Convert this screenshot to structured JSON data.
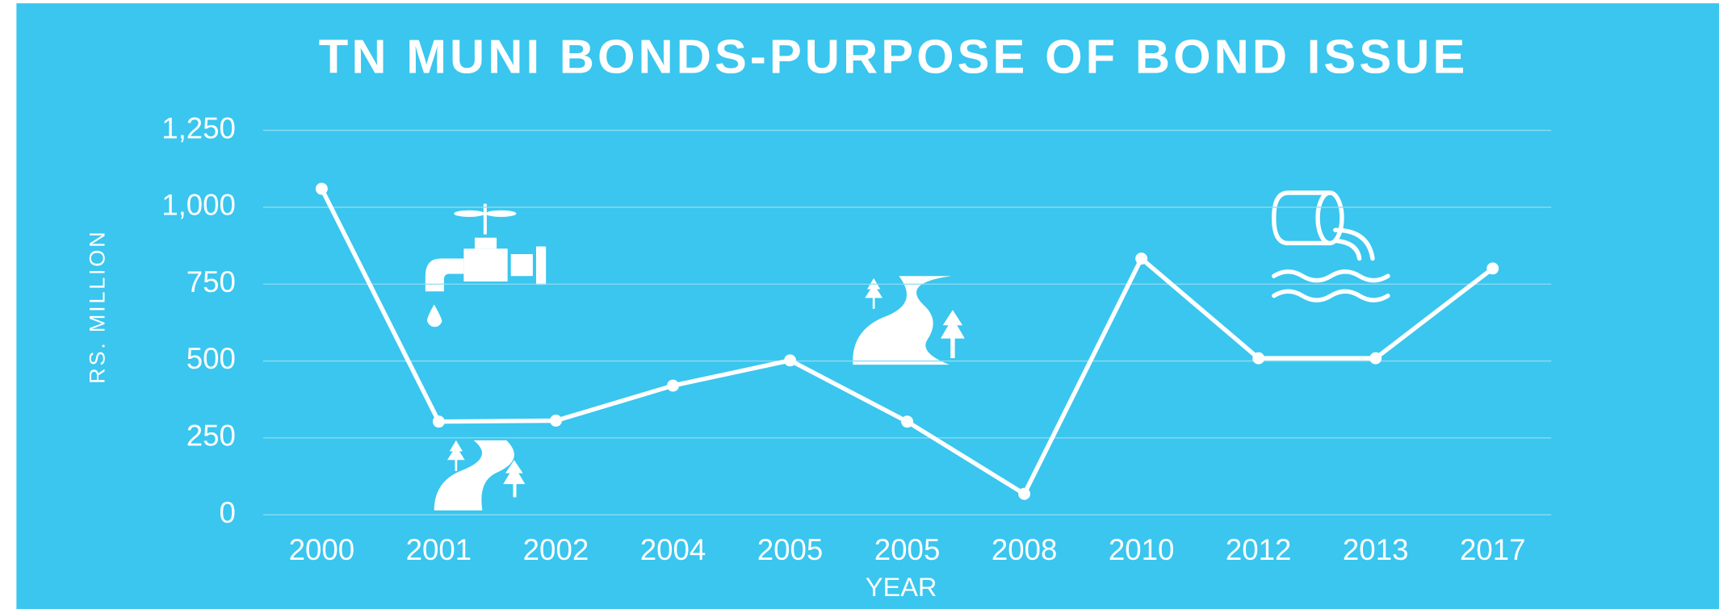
{
  "chart_data": {
    "type": "line",
    "title": "TN MUNI BONDS-PURPOSE OF BOND ISSUE",
    "x_label": "YEAR",
    "y_label": "RS. MILLION",
    "categories": [
      "2000",
      "2001",
      "2002",
      "2004",
      "2005",
      "2005",
      "2008",
      "2010",
      "2012",
      "2013",
      "2017"
    ],
    "values": [
      1060,
      303,
      306,
      420,
      502,
      303,
      68,
      833,
      509,
      509,
      801
    ],
    "color": "#ffffff",
    "ylim": [
      0,
      1250
    ],
    "yticks": [
      0,
      250,
      500,
      750,
      {
        "value": 1000,
        "label": "1,000"
      },
      {
        "value": 1250,
        "label": "1,250"
      }
    ],
    "grid": true
  }
}
